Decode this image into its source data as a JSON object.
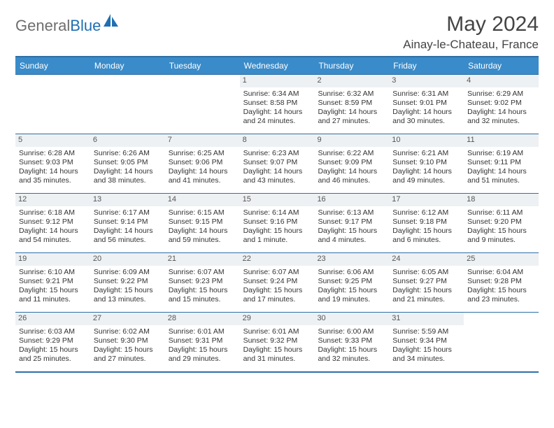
{
  "brand": {
    "part1": "General",
    "part2": "Blue"
  },
  "header": {
    "title": "May 2024",
    "location": "Ainay-le-Chateau, France"
  },
  "colors": {
    "header_bg": "#3a8bc9",
    "border": "#2f6fa7",
    "daynum_bg": "#eef1f3",
    "text": "#333333",
    "logo_gray": "#6e6e6e",
    "logo_blue": "#1f6fb2"
  },
  "day_names": [
    "Sunday",
    "Monday",
    "Tuesday",
    "Wednesday",
    "Thursday",
    "Friday",
    "Saturday"
  ],
  "weeks": [
    [
      {
        "blank": true
      },
      {
        "blank": true
      },
      {
        "blank": true
      },
      {
        "day": "1",
        "sunrise": "6:34 AM",
        "sunset": "8:58 PM",
        "daylight": "14 hours and 24 minutes."
      },
      {
        "day": "2",
        "sunrise": "6:32 AM",
        "sunset": "8:59 PM",
        "daylight": "14 hours and 27 minutes."
      },
      {
        "day": "3",
        "sunrise": "6:31 AM",
        "sunset": "9:01 PM",
        "daylight": "14 hours and 30 minutes."
      },
      {
        "day": "4",
        "sunrise": "6:29 AM",
        "sunset": "9:02 PM",
        "daylight": "14 hours and 32 minutes."
      }
    ],
    [
      {
        "day": "5",
        "sunrise": "6:28 AM",
        "sunset": "9:03 PM",
        "daylight": "14 hours and 35 minutes."
      },
      {
        "day": "6",
        "sunrise": "6:26 AM",
        "sunset": "9:05 PM",
        "daylight": "14 hours and 38 minutes."
      },
      {
        "day": "7",
        "sunrise": "6:25 AM",
        "sunset": "9:06 PM",
        "daylight": "14 hours and 41 minutes."
      },
      {
        "day": "8",
        "sunrise": "6:23 AM",
        "sunset": "9:07 PM",
        "daylight": "14 hours and 43 minutes."
      },
      {
        "day": "9",
        "sunrise": "6:22 AM",
        "sunset": "9:09 PM",
        "daylight": "14 hours and 46 minutes."
      },
      {
        "day": "10",
        "sunrise": "6:21 AM",
        "sunset": "9:10 PM",
        "daylight": "14 hours and 49 minutes."
      },
      {
        "day": "11",
        "sunrise": "6:19 AM",
        "sunset": "9:11 PM",
        "daylight": "14 hours and 51 minutes."
      }
    ],
    [
      {
        "day": "12",
        "sunrise": "6:18 AM",
        "sunset": "9:12 PM",
        "daylight": "14 hours and 54 minutes."
      },
      {
        "day": "13",
        "sunrise": "6:17 AM",
        "sunset": "9:14 PM",
        "daylight": "14 hours and 56 minutes."
      },
      {
        "day": "14",
        "sunrise": "6:15 AM",
        "sunset": "9:15 PM",
        "daylight": "14 hours and 59 minutes."
      },
      {
        "day": "15",
        "sunrise": "6:14 AM",
        "sunset": "9:16 PM",
        "daylight": "15 hours and 1 minute."
      },
      {
        "day": "16",
        "sunrise": "6:13 AM",
        "sunset": "9:17 PM",
        "daylight": "15 hours and 4 minutes."
      },
      {
        "day": "17",
        "sunrise": "6:12 AM",
        "sunset": "9:18 PM",
        "daylight": "15 hours and 6 minutes."
      },
      {
        "day": "18",
        "sunrise": "6:11 AM",
        "sunset": "9:20 PM",
        "daylight": "15 hours and 9 minutes."
      }
    ],
    [
      {
        "day": "19",
        "sunrise": "6:10 AM",
        "sunset": "9:21 PM",
        "daylight": "15 hours and 11 minutes."
      },
      {
        "day": "20",
        "sunrise": "6:09 AM",
        "sunset": "9:22 PM",
        "daylight": "15 hours and 13 minutes."
      },
      {
        "day": "21",
        "sunrise": "6:07 AM",
        "sunset": "9:23 PM",
        "daylight": "15 hours and 15 minutes."
      },
      {
        "day": "22",
        "sunrise": "6:07 AM",
        "sunset": "9:24 PM",
        "daylight": "15 hours and 17 minutes."
      },
      {
        "day": "23",
        "sunrise": "6:06 AM",
        "sunset": "9:25 PM",
        "daylight": "15 hours and 19 minutes."
      },
      {
        "day": "24",
        "sunrise": "6:05 AM",
        "sunset": "9:27 PM",
        "daylight": "15 hours and 21 minutes."
      },
      {
        "day": "25",
        "sunrise": "6:04 AM",
        "sunset": "9:28 PM",
        "daylight": "15 hours and 23 minutes."
      }
    ],
    [
      {
        "day": "26",
        "sunrise": "6:03 AM",
        "sunset": "9:29 PM",
        "daylight": "15 hours and 25 minutes."
      },
      {
        "day": "27",
        "sunrise": "6:02 AM",
        "sunset": "9:30 PM",
        "daylight": "15 hours and 27 minutes."
      },
      {
        "day": "28",
        "sunrise": "6:01 AM",
        "sunset": "9:31 PM",
        "daylight": "15 hours and 29 minutes."
      },
      {
        "day": "29",
        "sunrise": "6:01 AM",
        "sunset": "9:32 PM",
        "daylight": "15 hours and 31 minutes."
      },
      {
        "day": "30",
        "sunrise": "6:00 AM",
        "sunset": "9:33 PM",
        "daylight": "15 hours and 32 minutes."
      },
      {
        "day": "31",
        "sunrise": "5:59 AM",
        "sunset": "9:34 PM",
        "daylight": "15 hours and 34 minutes."
      },
      {
        "blank": true
      }
    ]
  ],
  "labels": {
    "sunrise": "Sunrise:",
    "sunset": "Sunset:",
    "daylight": "Daylight:"
  }
}
